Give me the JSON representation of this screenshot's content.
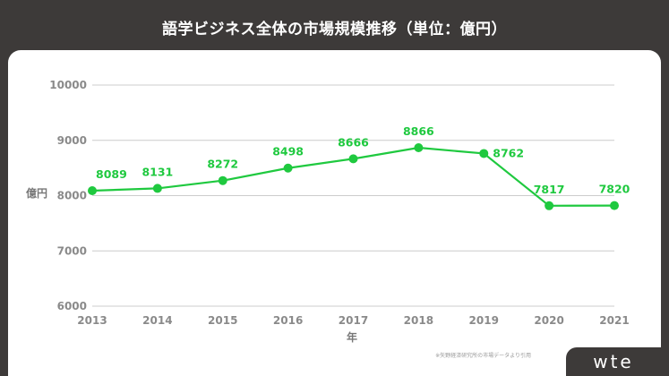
{
  "title": "語学ビジネス全体の市場規模推移（単位：億円）",
  "logo": "wte",
  "source": "※矢野経済研究所の市場データより引用",
  "colors": {
    "background": "#3d3a39",
    "line": "#1fc93f",
    "grid": "#cccccc"
  },
  "chart_data": {
    "type": "line",
    "title": "語学ビジネス全体の市場規模推移（単位：億円）",
    "xlabel": "年",
    "ylabel": "億円",
    "categories": [
      "2013",
      "2014",
      "2015",
      "2016",
      "2017",
      "2018",
      "2019",
      "2020",
      "2021"
    ],
    "series": [
      {
        "values": [
          8089,
          8131,
          8272,
          8498,
          8666,
          8866,
          8762,
          7817,
          7820
        ]
      }
    ],
    "ylim": [
      6000,
      10000
    ],
    "yticks": [
      6000,
      7000,
      8000,
      9000,
      10000
    ],
    "grid": true,
    "legend": "none"
  }
}
